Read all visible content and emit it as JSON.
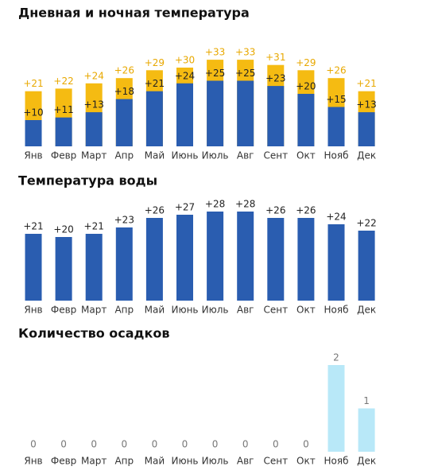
{
  "chart_data": [
    {
      "type": "bar",
      "title": "Дневная и ночная температура",
      "categories": [
        "Янв",
        "Февр",
        "Март",
        "Апр",
        "Май",
        "Июнь",
        "Июль",
        "Авг",
        "Сент",
        "Окт",
        "Нояб",
        "Дек"
      ],
      "series": [
        {
          "color": "#f5bb12",
          "values": [
            21,
            22,
            24,
            26,
            29,
            30,
            33,
            33,
            31,
            29,
            26,
            21
          ],
          "value_labels": [
            "+21",
            "+22",
            "+24",
            "+26",
            "+29",
            "+30",
            "+33",
            "+33",
            "+31",
            "+29",
            "+26",
            "+21"
          ]
        },
        {
          "color": "#2a5db0",
          "values": [
            10,
            11,
            13,
            18,
            21,
            24,
            25,
            25,
            23,
            20,
            15,
            13
          ],
          "value_labels": [
            "+10",
            "+11",
            "+13",
            "+18",
            "+21",
            "+24",
            "+25",
            "+25",
            "+23",
            "+20",
            "+15",
            "+13"
          ]
        }
      ]
    },
    {
      "type": "bar",
      "title": "Температура воды",
      "categories": [
        "Янв",
        "Февр",
        "Март",
        "Апр",
        "Май",
        "Июнь",
        "Июль",
        "Авг",
        "Сент",
        "Окт",
        "Нояб",
        "Дек"
      ],
      "series": [
        {
          "color": "#2a5db0",
          "values": [
            21,
            20,
            21,
            23,
            26,
            27,
            28,
            28,
            26,
            26,
            24,
            22
          ],
          "value_labels": [
            "+21",
            "+20",
            "+21",
            "+23",
            "+26",
            "+27",
            "+28",
            "+28",
            "+26",
            "+26",
            "+24",
            "+22"
          ]
        }
      ]
    },
    {
      "type": "bar",
      "title": "Количество осадков",
      "categories": [
        "Янв",
        "Февр",
        "Март",
        "Апр",
        "Май",
        "Июнь",
        "Июль",
        "Авг",
        "Сент",
        "Окт",
        "Нояб",
        "Дек"
      ],
      "series": [
        {
          "color": "#b8e8f8",
          "values": [
            0,
            0,
            0,
            0,
            0,
            0,
            0,
            0,
            0,
            0,
            2,
            1
          ]
        }
      ]
    }
  ]
}
